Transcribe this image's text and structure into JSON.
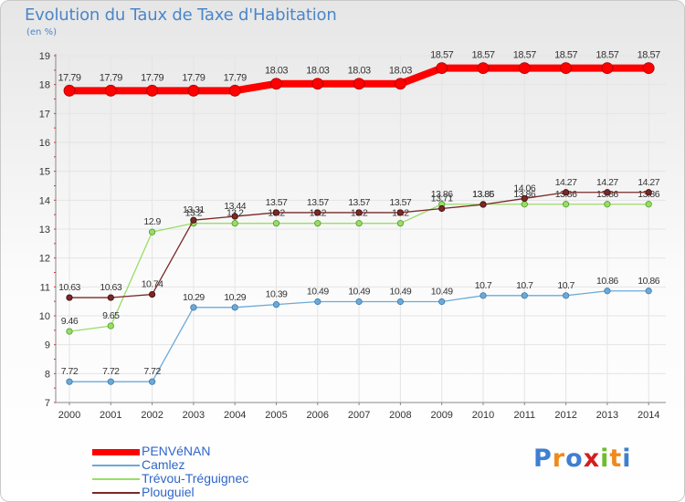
{
  "chart_data": {
    "type": "line",
    "title": "Evolution du Taux de Taxe d'Habitation",
    "subtitle": "(en %)",
    "x": [
      "2000",
      "2001",
      "2002",
      "2003",
      "2004",
      "2005",
      "2006",
      "2007",
      "2008",
      "2009",
      "2010",
      "2011",
      "2012",
      "2013",
      "2014"
    ],
    "ylim": [
      7,
      19
    ],
    "yticks": [
      7,
      8,
      9,
      10,
      11,
      12,
      13,
      14,
      15,
      16,
      17,
      18,
      19
    ],
    "grid": true,
    "legend_position": "bottom-left",
    "series": [
      {
        "name": "PENVéNAN",
        "color": "#ff0000",
        "values": [
          17.79,
          17.79,
          17.79,
          17.79,
          17.79,
          18.03,
          18.03,
          18.03,
          18.03,
          18.57,
          18.57,
          18.57,
          18.57,
          18.57,
          18.57
        ],
        "labels": [
          "17.79",
          "17.79",
          "17.79",
          "17.79",
          "17.79",
          "18.03",
          "18.03",
          "18.03",
          "18.03",
          "18.57",
          "18.57",
          "18.57",
          "18.57",
          "18.57",
          "18.57"
        ]
      },
      {
        "name": "Camlez",
        "color": "#6baad8",
        "values": [
          7.72,
          7.72,
          7.72,
          10.29,
          10.29,
          10.39,
          10.49,
          10.49,
          10.49,
          10.49,
          10.7,
          10.7,
          10.7,
          10.86,
          10.86
        ],
        "labels": [
          "7.72",
          "7.72",
          "7.72",
          "10.29",
          "10.29",
          "10.39",
          "10.49",
          "10.49",
          "10.49",
          "10.49",
          "10.7",
          "10.7",
          "10.7",
          "10.86",
          "10.86"
        ]
      },
      {
        "name": "Trévou-Tréguignec",
        "color": "#99dd66",
        "values": [
          9.46,
          9.65,
          12.9,
          13.2,
          13.2,
          13.2,
          13.2,
          13.2,
          13.2,
          13.86,
          13.86,
          13.86,
          13.86,
          13.86,
          13.86
        ],
        "labels": [
          "9.46",
          "9.65",
          "12.9",
          "13.2",
          "13.2",
          "13.2",
          "13.2",
          "13.2",
          "13.2",
          "13.86",
          "13.86",
          "13.86",
          "13.86",
          "13.86",
          "13.86"
        ]
      },
      {
        "name": "Plouguiel",
        "color": "#7a2828",
        "values": [
          10.63,
          10.63,
          10.74,
          13.31,
          13.44,
          13.57,
          13.57,
          13.57,
          13.57,
          13.71,
          13.85,
          14.06,
          14.27,
          14.27,
          14.27
        ],
        "labels": [
          "10.63",
          "10.63",
          "10.74",
          "13.31",
          "13.44",
          "13.57",
          "13.57",
          "13.57",
          "13.57",
          "13.71",
          "13.85",
          "14.06",
          "14.27",
          "14.27",
          "14.27"
        ]
      }
    ]
  },
  "logo": {
    "letters": [
      "P",
      "r",
      "o",
      "x",
      "i",
      "t",
      "i"
    ],
    "colors": [
      "#3f7fd0",
      "#f08a1c",
      "#3f7fd0",
      "#d02020",
      "#6dbe2c",
      "#f08a1c",
      "#3f7fd0"
    ]
  }
}
